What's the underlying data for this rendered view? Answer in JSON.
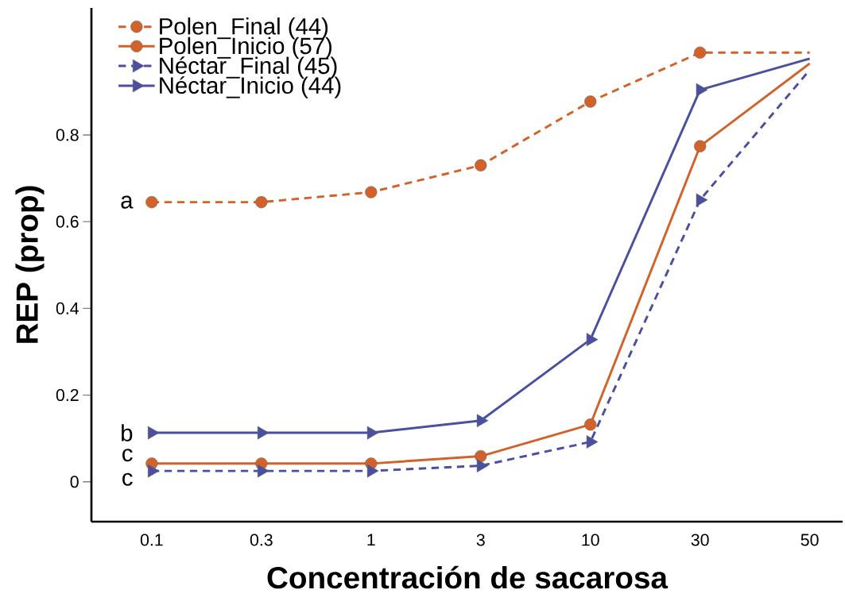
{
  "chart_data": {
    "type": "line",
    "xlabel": "Concentración de sacarosa",
    "ylabel": "REP (prop)",
    "ylim": [
      -0.092,
      1.093
    ],
    "yticks": [
      0,
      0.2,
      0.4,
      0.6,
      0.8
    ],
    "categories": [
      "0.1",
      "0.3",
      "1",
      "3",
      "10",
      "30",
      "50"
    ],
    "legend": "top left",
    "series": [
      {
        "name": "Polen_Final   (44)",
        "color": "#d2622a",
        "marker": "circle",
        "line_style": "dashed",
        "values": [
          0.645,
          0.645,
          0.668,
          0.73,
          0.877,
          0.99,
          0.99
        ]
      },
      {
        "name": "Polen_Inicio  (57)",
        "color": "#d2622a",
        "marker": "circle",
        "line_style": "solid",
        "values": [
          0.042,
          0.042,
          0.042,
          0.059,
          0.132,
          0.774,
          0.965
        ]
      },
      {
        "name": "Néctar_Final  (45)",
        "color": "#4a4fa0",
        "marker": "triangle",
        "line_style": "dashed",
        "values": [
          0.025,
          0.025,
          0.025,
          0.037,
          0.092,
          0.65,
          0.95
        ]
      },
      {
        "name": "Néctar_Inicio (44)",
        "color": "#4a4fa0",
        "marker": "triangle",
        "line_style": "solid",
        "values": [
          0.113,
          0.113,
          0.113,
          0.141,
          0.328,
          0.904,
          0.976
        ]
      }
    ],
    "annotations": [
      {
        "text": "a",
        "x": "0.1",
        "y": 0.645
      },
      {
        "text": "b",
        "x": "0.1",
        "y": 0.113
      },
      {
        "text": "c",
        "x": "0.1",
        "y": 0.042
      },
      {
        "text": "c",
        "x": "0.1",
        "y": 0.025
      }
    ]
  }
}
